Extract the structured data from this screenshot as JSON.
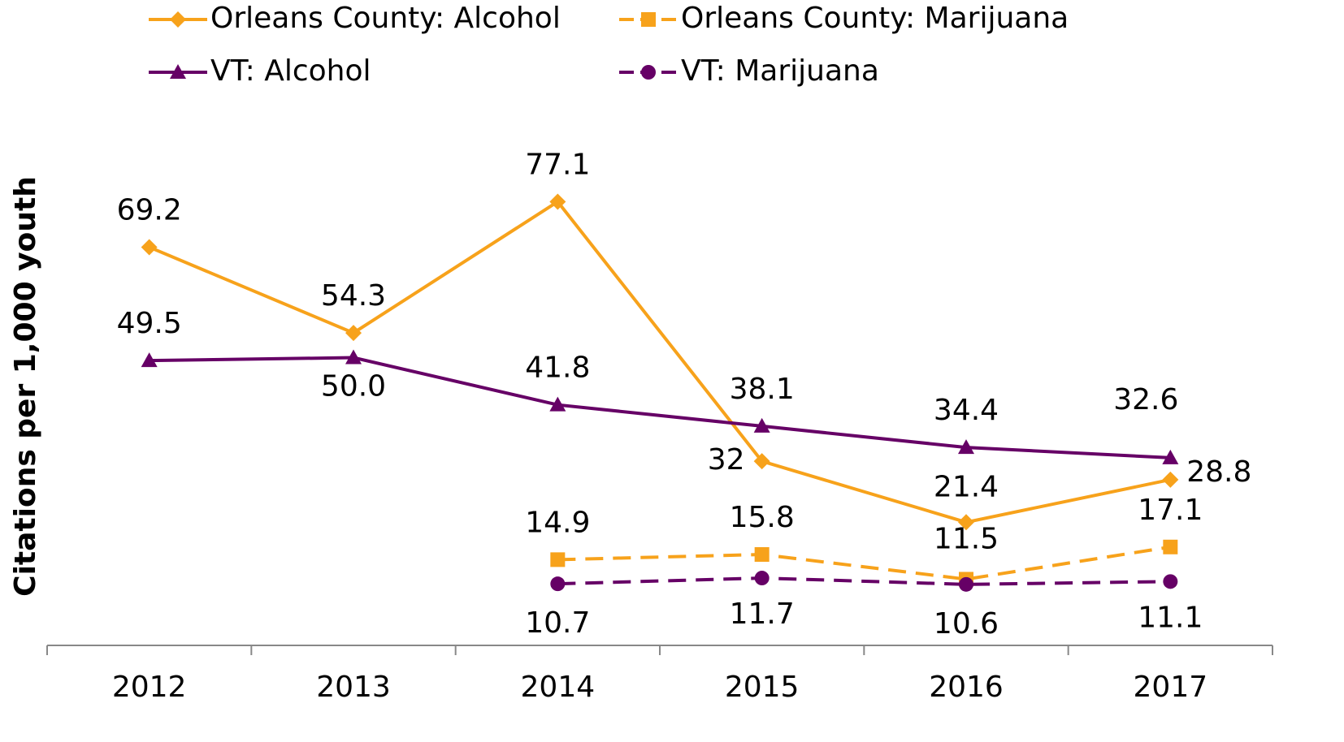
{
  "chart_data": {
    "type": "line",
    "y_label": "Citations per 1,000 youth",
    "categories": [
      "2012",
      "2013",
      "2014",
      "2015",
      "2016",
      "2017"
    ],
    "ylim": [
      0,
      90
    ],
    "series": [
      {
        "name": "Orleans County: Alcohol",
        "color": "#f7a21b",
        "marker": "diamond",
        "dash": false,
        "values": [
          69.2,
          54.3,
          77.1,
          32,
          21.4,
          28.8
        ]
      },
      {
        "name": "Orleans County: Marijuana",
        "color": "#f7a21b",
        "marker": "square",
        "dash": true,
        "values": [
          null,
          null,
          14.9,
          15.8,
          11.5,
          17.1
        ]
      },
      {
        "name": "VT: Alcohol",
        "color": "#660066",
        "marker": "triangle",
        "dash": false,
        "values": [
          49.5,
          50.0,
          41.8,
          38.1,
          34.4,
          32.6
        ],
        "value_labels": [
          "49.5",
          "50.0",
          "41.8",
          "38.1",
          "34.4",
          "32.6"
        ]
      },
      {
        "name": "VT: Marijuana",
        "color": "#660066",
        "marker": "circle",
        "dash": true,
        "values": [
          null,
          null,
          10.7,
          11.7,
          10.6,
          11.1
        ]
      }
    ]
  }
}
